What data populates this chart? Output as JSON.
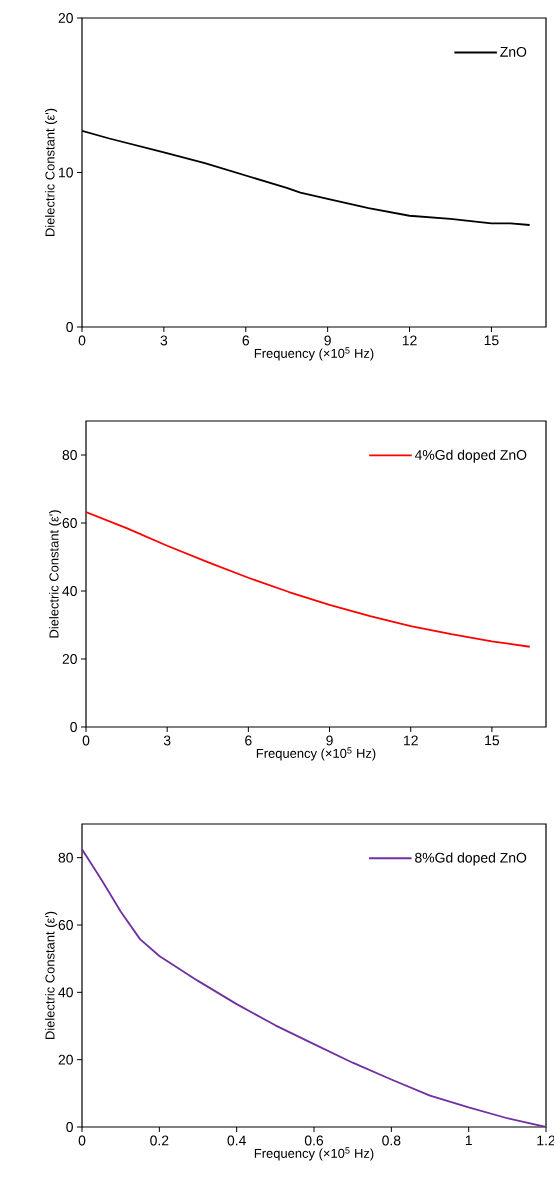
{
  "chart_data": [
    {
      "type": "line",
      "xlabel": "Frequency (×10$^{5}$ Hz)",
      "ylabel": "Dielectric Constant (ε')",
      "xlim": [
        0,
        17
      ],
      "ylim": [
        0,
        20
      ],
      "xticks": [
        0,
        3,
        6,
        9,
        12,
        15
      ],
      "yticks": [
        0,
        10,
        20
      ],
      "legend": "top right",
      "grid": false,
      "series": [
        {
          "name": "ZnO",
          "color": "#000000",
          "x": [
            0,
            1,
            3,
            4.5,
            6,
            7.5,
            8,
            9,
            10.5,
            12,
            13.5,
            15,
            15.7,
            16.4
          ],
          "values": [
            12.7,
            12.2,
            11.3,
            10.6,
            9.8,
            9.0,
            8.7,
            8.3,
            7.7,
            7.2,
            7.0,
            6.7,
            6.7,
            6.6
          ]
        }
      ]
    },
    {
      "type": "line",
      "xlabel": "Frequency (×10$^{5}$ Hz)",
      "ylabel": "Dielectric Constant (ε')",
      "xlim": [
        0,
        17
      ],
      "ylim": [
        0,
        90
      ],
      "xticks": [
        0,
        3,
        6,
        9,
        12,
        15
      ],
      "yticks": [
        0,
        20,
        40,
        60,
        80
      ],
      "legend": "top right",
      "grid": false,
      "series": [
        {
          "name": "4%Gd doped ZnO",
          "color": "#ff0000",
          "x": [
            0,
            1.5,
            3,
            4.5,
            6,
            7.5,
            9,
            10.5,
            12,
            13.5,
            15,
            16.4
          ],
          "values": [
            63.2,
            58.5,
            53.3,
            48.5,
            43.9,
            39.7,
            35.9,
            32.6,
            29.7,
            27.3,
            25.2,
            23.6
          ]
        }
      ]
    },
    {
      "type": "line",
      "xlabel": "Frequency (×10$^{5}$ Hz)",
      "ylabel": "Dielectric Constant (ε')",
      "xlim": [
        0,
        1.2
      ],
      "ylim": [
        0,
        90
      ],
      "xticks": [
        0,
        0.2,
        0.4,
        0.6,
        0.8,
        1,
        1.2
      ],
      "yticks": [
        0,
        20,
        40,
        60,
        80
      ],
      "legend": "top right",
      "grid": false,
      "series": [
        {
          "name": "8%Gd doped ZnO",
          "color": "#7030a0",
          "x": [
            0,
            0.05,
            0.1,
            0.15,
            0.2,
            0.3,
            0.4,
            0.5,
            0.6,
            0.7,
            0.8,
            0.9,
            1.0,
            1.1,
            1.2
          ],
          "values": [
            82.5,
            73.5,
            64,
            55.8,
            50.8,
            43.4,
            36.5,
            30.2,
            24.6,
            19.1,
            14.1,
            9.3,
            5.8,
            2.6,
            0
          ]
        }
      ]
    }
  ]
}
